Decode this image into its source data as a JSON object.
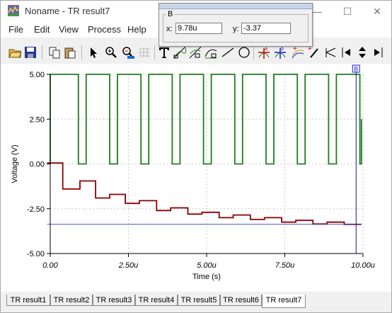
{
  "window": {
    "title": "Noname - TR result7",
    "minimize_glyph": "—",
    "maximize_glyph": "☐",
    "close_glyph": "✕",
    "app_icon": "chart-app-icon"
  },
  "menu": [
    "File",
    "Edit",
    "View",
    "Process",
    "Help"
  ],
  "toolbar": {
    "icons": [
      "open-folder-icon",
      "save-icon",
      "copy-icon",
      "paste-icon",
      "select-arrow-icon",
      "zoom-in-icon",
      "zoom-100-icon",
      "grid-icon",
      "text-tool-icon",
      "curve-tool-icon",
      "curve-tool-2-icon",
      "curve-tool-3-icon",
      "line-tool-icon",
      "ellipse-tool-icon",
      "cursor-a-icon",
      "cursor-b-icon",
      "add-curve-icon",
      "pen-tool-icon",
      "marker-icon",
      "prev-arrow-icon",
      "up-down-icon",
      "next-arrow-icon"
    ]
  },
  "cursor_panel": {
    "group_label": "B",
    "x_label": "x:",
    "x_value": "9.78u",
    "y_label": "y:",
    "y_value": "-3.37"
  },
  "colors": {
    "green_trace": "#1e7d1e",
    "red_trace": "#8b0000",
    "blue_line": "#4a4ad0",
    "cursor": "#1a1a7a"
  },
  "chart_data": {
    "type": "line",
    "xlabel": "Time (s)",
    "ylabel": "Voltage (V)",
    "xlim": [
      0,
      10
    ],
    "ylim": [
      -5,
      5
    ],
    "x_ticks": [
      0,
      2.5,
      5,
      7.5,
      10
    ],
    "x_tick_labels": [
      "0.00",
      "2.50u",
      "5.00u",
      "7.50u",
      "10.00u"
    ],
    "y_ticks": [
      5,
      2.5,
      0,
      -2.5,
      -5
    ],
    "y_tick_labels": [
      "5.00",
      "2.50",
      "0.00",
      "-2.50",
      "-5.00"
    ],
    "grid": true,
    "cursor_x": 9.78,
    "cursor_label": "B",
    "series": [
      {
        "style": "square",
        "color": "#1e7d1e",
        "high": 5,
        "low": 0,
        "transitions": [
          0,
          0.9,
          1.15,
          1.9,
          2.15,
          2.9,
          3.15,
          3.9,
          4.15,
          4.9,
          5.15,
          5.9,
          6.15,
          6.9,
          7.15,
          7.9,
          8.15,
          8.9,
          9.15,
          9.9
        ],
        "end": 9.95,
        "end_value": 2.5
      },
      {
        "style": "step",
        "color": "#8b0000",
        "points": [
          [
            -0.1,
            0.05
          ],
          [
            0.4,
            0.05
          ],
          [
            0.4,
            -1.4
          ],
          [
            0.95,
            -1.4
          ],
          [
            0.95,
            -0.95
          ],
          [
            1.45,
            -0.95
          ],
          [
            1.45,
            -1.9
          ],
          [
            1.9,
            -1.9
          ],
          [
            1.9,
            -1.7
          ],
          [
            2.4,
            -1.7
          ],
          [
            2.4,
            -2.2
          ],
          [
            2.85,
            -2.2
          ],
          [
            2.85,
            -2.05
          ],
          [
            3.4,
            -2.05
          ],
          [
            3.4,
            -2.6
          ],
          [
            3.85,
            -2.6
          ],
          [
            3.85,
            -2.45
          ],
          [
            4.4,
            -2.45
          ],
          [
            4.4,
            -2.8
          ],
          [
            4.85,
            -2.8
          ],
          [
            4.85,
            -2.7
          ],
          [
            5.4,
            -2.7
          ],
          [
            5.4,
            -3.0
          ],
          [
            5.85,
            -3.0
          ],
          [
            5.85,
            -2.85
          ],
          [
            6.4,
            -2.85
          ],
          [
            6.4,
            -3.1
          ],
          [
            6.85,
            -3.1
          ],
          [
            6.85,
            -3.0
          ],
          [
            7.4,
            -3.0
          ],
          [
            7.4,
            -3.25
          ],
          [
            7.85,
            -3.25
          ],
          [
            7.85,
            -3.15
          ],
          [
            8.4,
            -3.15
          ],
          [
            8.4,
            -3.35
          ],
          [
            8.85,
            -3.35
          ],
          [
            8.85,
            -3.25
          ],
          [
            9.4,
            -3.25
          ],
          [
            9.4,
            -3.37
          ],
          [
            9.95,
            -3.37
          ]
        ]
      },
      {
        "style": "flat",
        "color": "#4a4ad0",
        "points": [
          [
            -0.1,
            -3.37
          ],
          [
            9.95,
            -3.37
          ]
        ]
      }
    ]
  },
  "tabs": [
    "TR result1",
    "TR result2",
    "TR result3",
    "TR result4",
    "TR result5",
    "TR result6",
    "TR result7"
  ],
  "active_tab": "TR result7"
}
